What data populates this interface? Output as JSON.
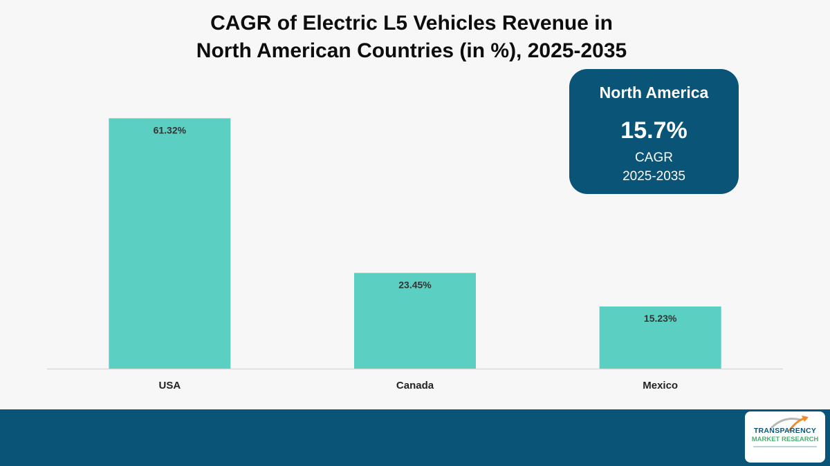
{
  "chart_data": {
    "type": "bar",
    "title": "CAGR of Electric L5 Vehicles Revenue in North American Countries (in %), 2025-2035",
    "title_lines": [
      "CAGR of Electric L5 Vehicles Revenue in",
      "North American Countries (in %), 2025-2035"
    ],
    "categories": [
      "USA",
      "Canada",
      "Mexico"
    ],
    "values": [
      61.32,
      23.45,
      15.23
    ],
    "data_labels": [
      "61.32%",
      "23.45%",
      "15.23%"
    ],
    "xlabel": "",
    "ylabel": "",
    "ylim": [
      0,
      70
    ],
    "grid": false,
    "bar_color": "#5ccfc3"
  },
  "callout": {
    "region": "North America",
    "value": "15.7%",
    "metric": "CAGR",
    "period": "2025-2035"
  },
  "logo": {
    "line1": "TRANSPARENCY",
    "line2": "MARKET RESEARCH"
  },
  "colors": {
    "accent": "#0a5478",
    "bar": "#5ccfc3",
    "background": "#f7f7f7"
  }
}
